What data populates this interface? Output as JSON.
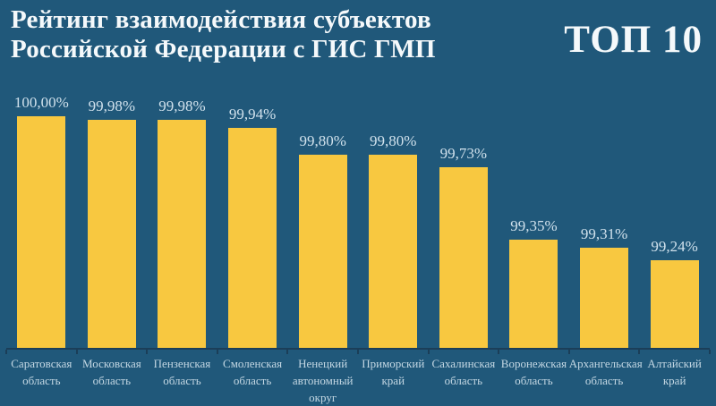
{
  "header": {
    "title_line1": "Рейтинг взаимодействия субъектов",
    "title_line2": "Российской Федерации с ГИС ГМП",
    "badge": "ТОП 10"
  },
  "colors": {
    "background": "#20587A",
    "bar": "#F8C840",
    "title_text": "#F5F9FB",
    "value_text": "#D0E1EC",
    "category_text": "#C3D7E3",
    "axis": "#1B3E58"
  },
  "chart_data": {
    "type": "bar",
    "title": "Рейтинг взаимодействия субъектов Российской Федерации с ГИС ГМП",
    "subtitle": "ТОП 10",
    "categories": [
      "Саратовская область",
      "Московская область",
      "Пензенская область",
      "Смоленская область",
      "Ненецкий автономный округ",
      "Приморский край",
      "Сахалинская область",
      "Воронежская область",
      "Архангельская область",
      "Алтайский край"
    ],
    "values": [
      100.0,
      99.98,
      99.98,
      99.94,
      99.8,
      99.8,
      99.73,
      99.35,
      99.31,
      99.24
    ],
    "value_labels": [
      "100,00%",
      "99,98%",
      "99,98%",
      "99,94%",
      "99,80%",
      "99,80%",
      "99,73%",
      "99,35%",
      "99,31%",
      "99,24%"
    ],
    "xlabel": "",
    "ylabel": "",
    "ylim": [
      98.78,
      100.0
    ],
    "grid": false,
    "legend": false,
    "bar_color": "#F8C840"
  }
}
